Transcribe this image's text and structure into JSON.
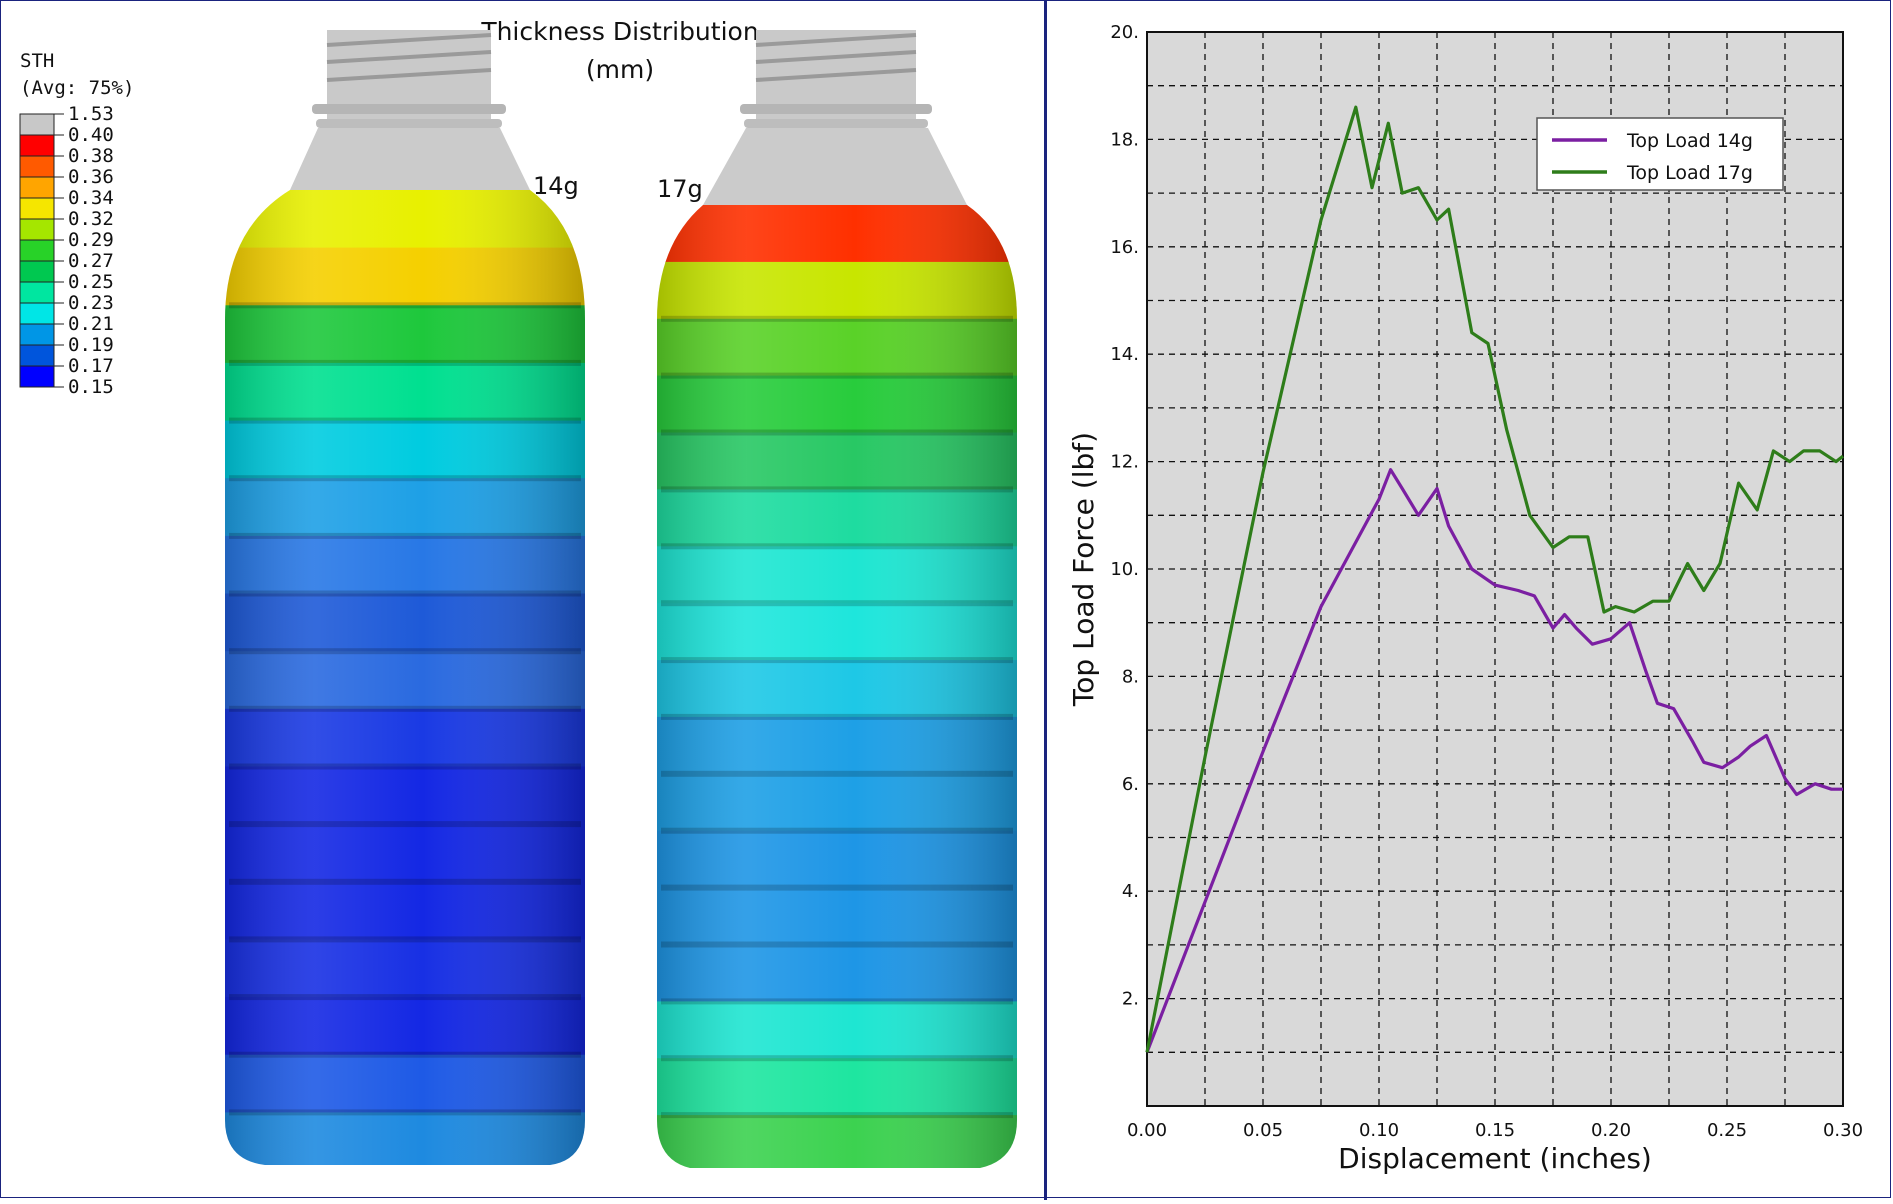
{
  "legend": {
    "title": "STH",
    "subtitle": "(Avg: 75%)",
    "levels": [
      "1.53",
      "0.40",
      "0.38",
      "0.36",
      "0.34",
      "0.32",
      "0.29",
      "0.27",
      "0.25",
      "0.23",
      "0.21",
      "0.19",
      "0.17",
      "0.15"
    ],
    "colors": [
      "#c8c8c8",
      "#ff0000",
      "#ff5a00",
      "#ffa500",
      "#f5e600",
      "#a5e600",
      "#28d228",
      "#00c850",
      "#00e6a0",
      "#00e6e6",
      "#0096e6",
      "#0055dc",
      "#0000ff"
    ]
  },
  "figure_title": {
    "line1": "Thickness Distribution",
    "line2": "(mm)"
  },
  "bottles": [
    {
      "label": "14g",
      "band_colors": [
        "#e8f000",
        "#f5d000",
        "#1ec83c",
        "#00e090",
        "#00cce0",
        "#1ea0e6",
        "#2878e6",
        "#1e5ad8",
        "#2a6ae0",
        "#1a3ae4",
        "#1428e4",
        "#1428e4",
        "#1428e4",
        "#1830e4",
        "#1428e4",
        "#1e5ae6",
        "#1e8ae0"
      ]
    },
    {
      "label": "17g",
      "band_colors": [
        "#ff3000",
        "#c8e600",
        "#5ad228",
        "#28cc3c",
        "#28c864",
        "#1edca0",
        "#1ee6d2",
        "#1ee6dc",
        "#1ec8e6",
        "#1ea0e6",
        "#1ea0e6",
        "#1e96e6",
        "#1e96e6",
        "#1e96e6",
        "#1ee6d2",
        "#1ee6a0",
        "#3cd250"
      ]
    }
  ],
  "chart_data": {
    "type": "line",
    "xlabel": "Displacement (inches)",
    "ylabel": "Top Load Force (lbf)",
    "xlim": [
      0,
      0.3
    ],
    "ylim": [
      0,
      20
    ],
    "grid": true,
    "legend_position": "top-right",
    "x_ticks": [
      "0.00",
      "0.05",
      "0.10",
      "0.15",
      "0.20",
      "0.25",
      "0.30"
    ],
    "y_ticks": [
      "2.",
      "4.",
      "6.",
      "8.",
      "10.",
      "12.",
      "14.",
      "16.",
      "18.",
      "20."
    ],
    "x_tick_values": [
      0,
      0.05,
      0.1,
      0.15,
      0.2,
      0.25,
      0.3
    ],
    "y_tick_values": [
      2,
      4,
      6,
      8,
      10,
      12,
      14,
      16,
      18,
      20
    ],
    "series": [
      {
        "name": "Top Load 14g",
        "color": "#7b1fa2",
        "x": [
          0,
          0.025,
          0.05,
          0.075,
          0.1,
          0.105,
          0.11,
          0.117,
          0.125,
          0.13,
          0.14,
          0.15,
          0.16,
          0.167,
          0.175,
          0.18,
          0.185,
          0.192,
          0.2,
          0.208,
          0.215,
          0.22,
          0.227,
          0.235,
          0.24,
          0.248,
          0.255,
          0.26,
          0.267,
          0.275,
          0.28,
          0.288,
          0.295,
          0.3
        ],
        "y": [
          1.0,
          3.8,
          6.6,
          9.3,
          11.3,
          11.85,
          11.5,
          11.0,
          11.5,
          10.8,
          10.0,
          9.7,
          9.6,
          9.5,
          8.9,
          9.15,
          8.9,
          8.6,
          8.7,
          9.0,
          8.1,
          7.5,
          7.4,
          6.8,
          6.4,
          6.3,
          6.5,
          6.7,
          6.9,
          6.1,
          5.8,
          6.0,
          5.9,
          5.9
        ]
      },
      {
        "name": "Top Load 17g",
        "color": "#2e7d1a",
        "x": [
          0,
          0.025,
          0.05,
          0.075,
          0.09,
          0.097,
          0.104,
          0.11,
          0.117,
          0.125,
          0.13,
          0.14,
          0.147,
          0.155,
          0.165,
          0.175,
          0.182,
          0.19,
          0.197,
          0.202,
          0.21,
          0.218,
          0.225,
          0.233,
          0.24,
          0.247,
          0.255,
          0.263,
          0.27,
          0.277,
          0.283,
          0.29,
          0.297,
          0.3
        ],
        "y": [
          1.0,
          6.5,
          11.8,
          16.5,
          18.6,
          17.1,
          18.3,
          17.0,
          17.1,
          16.5,
          16.7,
          14.4,
          14.2,
          12.6,
          11.0,
          10.4,
          10.6,
          10.6,
          9.2,
          9.3,
          9.2,
          9.4,
          9.4,
          10.1,
          9.6,
          10.1,
          11.6,
          11.1,
          12.2,
          12.0,
          12.2,
          12.2,
          12.0,
          12.1
        ]
      }
    ]
  }
}
